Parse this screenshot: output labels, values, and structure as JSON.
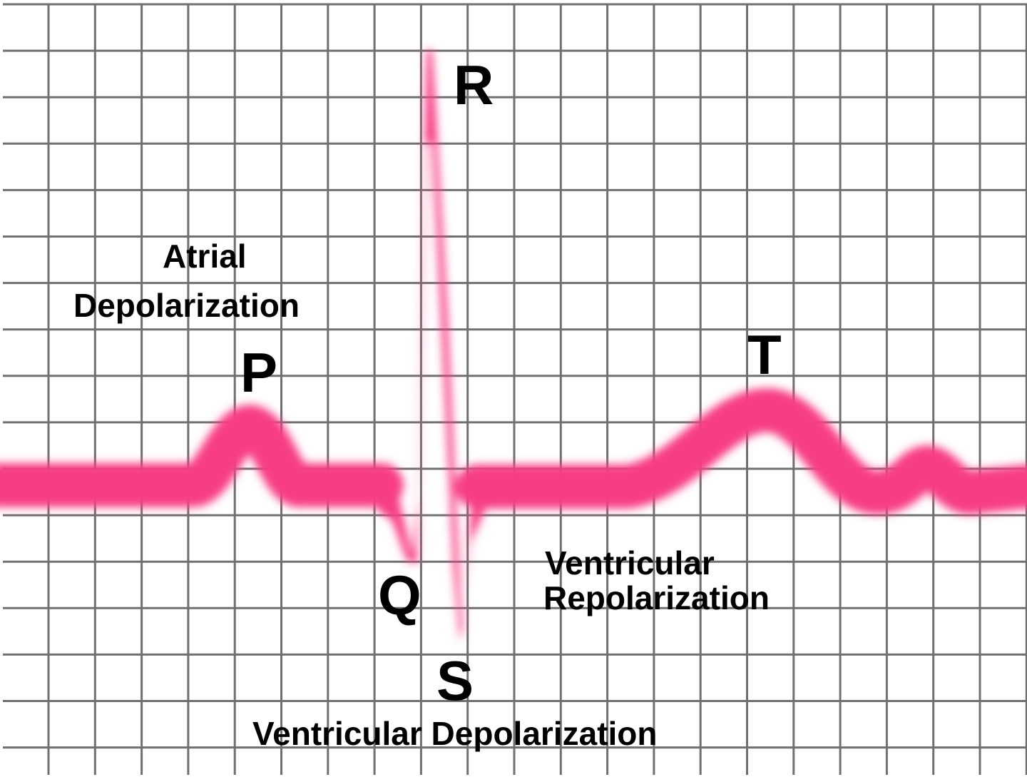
{
  "colors": {
    "trace": "#f73c85",
    "grid": "#707070",
    "background": "#ffffff"
  },
  "waves": {
    "p": "P",
    "q": "Q",
    "r": "R",
    "s": "S",
    "t": "T"
  },
  "annotations": {
    "atrial_line1": "Atrial",
    "atrial_line2": "Depolarization",
    "ventricular_repol_line1": "Ventricular",
    "ventricular_repol_line2": "Repolarization",
    "ventricular_depol": "Ventricular Depolarization"
  }
}
